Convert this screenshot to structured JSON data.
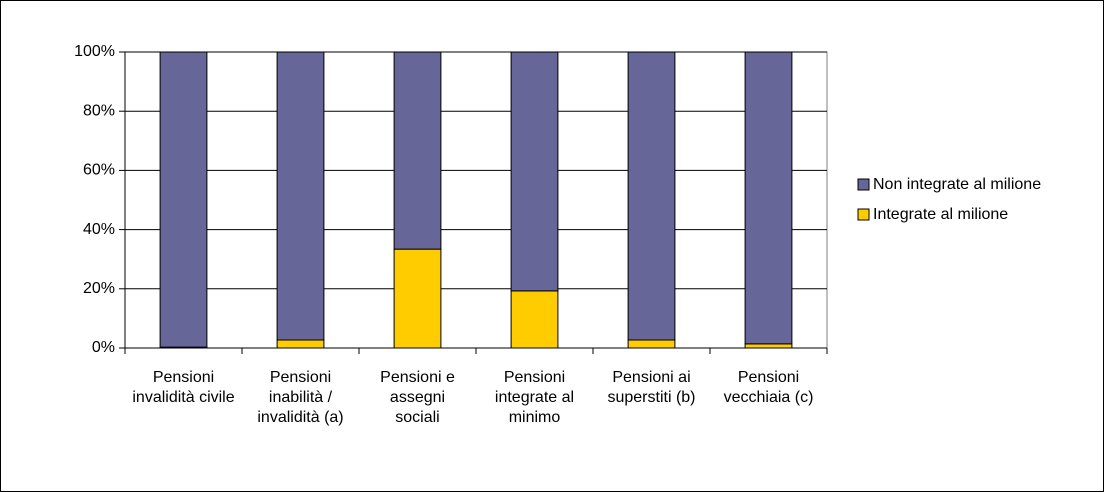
{
  "chart_data": {
    "type": "bar",
    "stacked": true,
    "categories": [
      "Pensioni invalidità civile",
      "Pensioni inabilità / invalidità (a)",
      "Pensioni e assegni sociali",
      "Pensioni integrate al minimo",
      "Pensioni ai superstiti (b)",
      "Pensioni vecchiaia (c)"
    ],
    "series": [
      {
        "name": "Non integrate al milione",
        "color": "#666699",
        "values": [
          99.7,
          97.3,
          66.6,
          80.7,
          97.3,
          98.6
        ]
      },
      {
        "name": "Integrate al milione",
        "color": "#ffcc00",
        "values": [
          0.3,
          2.7,
          33.4,
          19.3,
          2.7,
          1.4
        ]
      }
    ],
    "ylim": [
      0,
      100
    ],
    "yticks": [
      {
        "value": 0,
        "label": "0%"
      },
      {
        "value": 20,
        "label": "20%"
      },
      {
        "value": 40,
        "label": "40%"
      },
      {
        "value": 60,
        "label": "60%"
      },
      {
        "value": 80,
        "label": "80%"
      },
      {
        "value": 100,
        "label": "100%"
      }
    ],
    "grid": true,
    "legend": "right"
  }
}
